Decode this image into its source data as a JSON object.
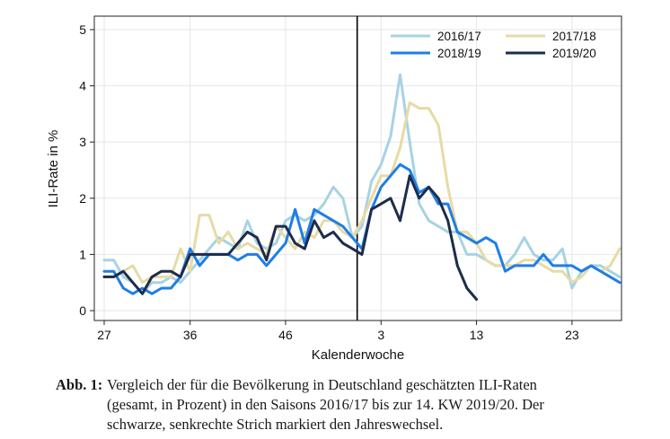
{
  "chart_data": {
    "type": "line",
    "xlabel": "Kalenderwoche",
    "ylabel": "ILI-Rate in %",
    "ylim": [
      0,
      5
    ],
    "yticks": [
      "0",
      "1",
      "2",
      "3",
      "4",
      "5"
    ],
    "xticks": [
      {
        "label": "27",
        "index": 0
      },
      {
        "label": "36",
        "index": 9
      },
      {
        "label": "46",
        "index": 19
      },
      {
        "label": "3",
        "index": 29
      },
      {
        "label": "13",
        "index": 39
      },
      {
        "label": "23",
        "index": 49
      }
    ],
    "year_change_index": 26.5,
    "legend_position": "top-right",
    "series": [
      {
        "name": "2016/17",
        "color": "#a7d3e3",
        "values": [
          0.9,
          0.9,
          0.6,
          0.5,
          0.3,
          0.5,
          0.5,
          0.6,
          0.5,
          0.7,
          0.9,
          1.1,
          1.3,
          1.2,
          1.1,
          1.6,
          1.2,
          1.1,
          1.2,
          1.6,
          1.7,
          1.6,
          1.7,
          1.9,
          2.2,
          2.0,
          1.3,
          1.5,
          2.3,
          2.6,
          3.1,
          4.2,
          3.0,
          1.9,
          1.6,
          1.5,
          1.4,
          1.4,
          1.0,
          1.0,
          0.9,
          0.8,
          0.8,
          1.0,
          1.3,
          1.0,
          0.9,
          0.9,
          1.1,
          0.4,
          0.7,
          0.8,
          0.8,
          0.7,
          0.6
        ]
      },
      {
        "name": "2017/18",
        "color": "#e6dba5",
        "values": [
          0.6,
          0.6,
          0.7,
          0.8,
          0.5,
          0.6,
          0.6,
          0.6,
          1.1,
          0.7,
          1.7,
          1.7,
          1.2,
          1.4,
          1.1,
          1.2,
          1.1,
          1.0,
          1.5,
          1.3,
          1.1,
          1.4,
          1.3,
          1.6,
          1.6,
          1.4,
          1.3,
          1.6,
          2.0,
          2.4,
          2.4,
          2.9,
          3.7,
          3.6,
          3.6,
          3.3,
          2.2,
          1.4,
          1.4,
          1.2,
          0.9,
          0.8,
          0.8,
          0.8,
          0.9,
          0.9,
          0.8,
          0.7,
          0.7,
          0.5,
          0.6,
          0.8,
          0.7,
          0.8,
          1.1
        ]
      },
      {
        "name": "2018/19",
        "color": "#1f7ee8",
        "values": [
          0.7,
          0.7,
          0.4,
          0.3,
          0.4,
          0.3,
          0.4,
          0.4,
          0.6,
          1.1,
          0.8,
          1.0,
          1.0,
          1.0,
          0.9,
          1.0,
          1.0,
          0.8,
          1.0,
          1.2,
          1.8,
          1.2,
          1.8,
          1.7,
          1.6,
          1.5,
          1.3,
          1.1,
          1.8,
          2.2,
          2.4,
          2.6,
          2.5,
          2.1,
          2.2,
          1.9,
          1.9,
          1.4,
          1.3,
          1.2,
          1.3,
          1.2,
          0.7,
          0.8,
          0.8,
          0.8,
          1.0,
          0.8,
          0.8,
          0.8,
          0.7,
          0.8,
          0.7,
          0.6,
          0.5
        ]
      },
      {
        "name": "2019/20",
        "color": "#1e2c4c",
        "values": [
          0.6,
          0.6,
          0.7,
          0.5,
          0.3,
          0.6,
          0.7,
          0.7,
          0.6,
          1.0,
          1.0,
          1.0,
          1.0,
          1.0,
          1.2,
          1.4,
          1.3,
          0.9,
          1.5,
          1.5,
          1.2,
          1.1,
          1.6,
          1.3,
          1.4,
          1.2,
          1.1,
          1.0,
          1.8,
          1.9,
          2.0,
          1.6,
          2.4,
          2.0,
          2.2,
          2.0,
          1.6,
          0.8,
          0.4,
          0.2
        ]
      }
    ]
  },
  "caption": {
    "label": "Abb. 1:",
    "lines": [
      "Vergleich der für die Bevölkerung in Deutschland geschätzten ILI-Raten",
      "(gesamt, in Prozent) in den Saisons 2016/17 bis zur 14. KW 2019/20. Der",
      "schwarze, senkrechte Strich markiert den Jahreswechsel."
    ]
  }
}
